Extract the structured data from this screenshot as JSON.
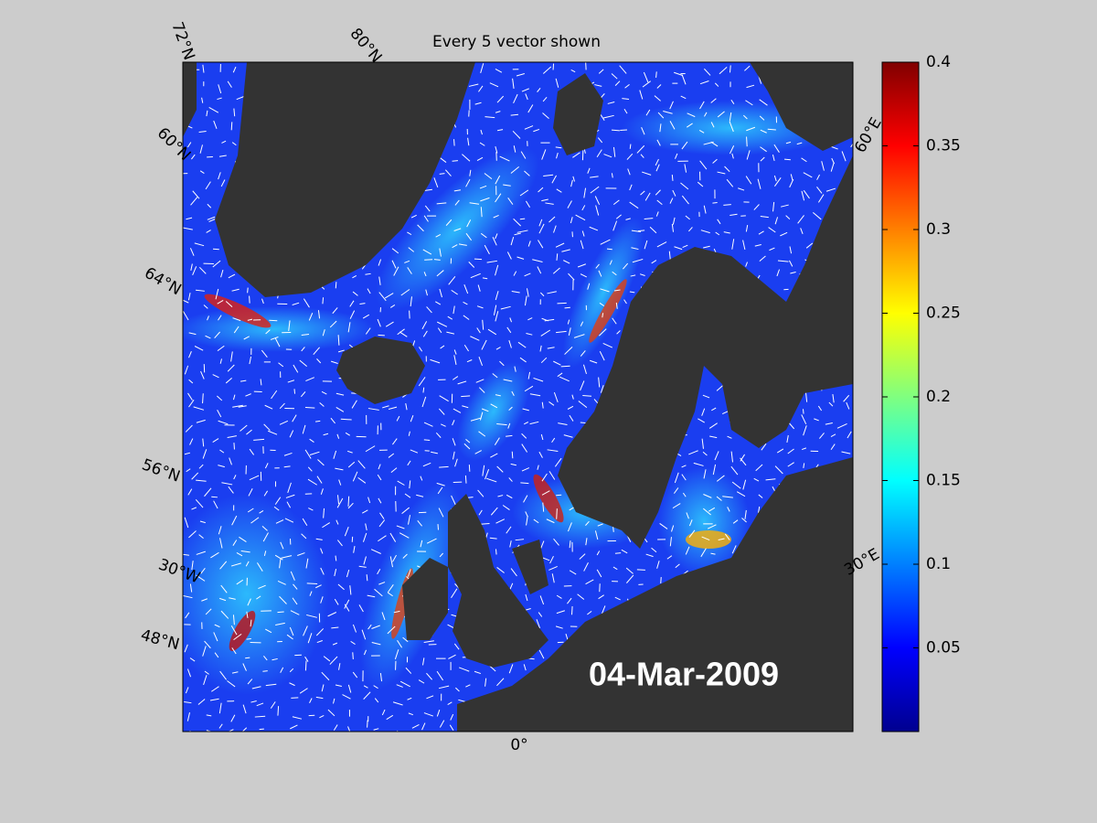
{
  "title": "Every 5 vector shown",
  "date_label": "04-Mar-2009",
  "map_labels": {
    "lat_72": "72°N",
    "lat_80": "80°N",
    "lat_60": "60°N",
    "lat_64": "64°N",
    "lat_56": "56°N",
    "lat_48": "48°N",
    "lon_30w": "30°W",
    "lon_0": "0°",
    "lon_30e": "30°E",
    "lon_60e": "60°E"
  },
  "colorbar": {
    "lim": [
      0,
      0.4
    ],
    "ticks": [
      0.05,
      0.1,
      0.15,
      0.2,
      0.25,
      0.3,
      0.35,
      0.4
    ]
  }
}
